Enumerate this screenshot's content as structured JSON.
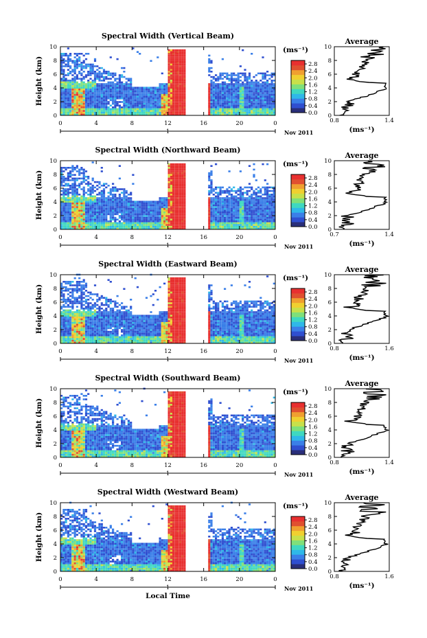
{
  "chart_data": [
    {
      "type": "heatmap",
      "title": "Spectral Width (Vertical Beam)",
      "ylabel": "Height (km)",
      "xlabel": "",
      "x_ticks": [
        "0",
        "4",
        "8",
        "12",
        "16",
        "20",
        "0"
      ],
      "y_ticks": [
        "0",
        "2",
        "4",
        "6",
        "8",
        "10"
      ],
      "xlim": [
        0,
        24
      ],
      "ylim": [
        0,
        10
      ],
      "date_label": "Nov 2011",
      "day_marker": "1",
      "colorbar": {
        "unit": "(ms⁻¹)",
        "ticks": [
          "0.0",
          "0.4",
          "0.8",
          "1.2",
          "1.6",
          "2.0",
          "2.4",
          "2.8"
        ],
        "range": [
          0,
          3
        ]
      },
      "average_profile": {
        "title": "Average",
        "xlabel": "(ms⁻¹)",
        "x_ticks": [
          "0.8",
          "1.4"
        ],
        "xlim": [
          0.8,
          1.4
        ],
        "y_ticks": [
          "0",
          "2",
          "4",
          "6",
          "8",
          "10"
        ]
      },
      "gap": [
        13.9,
        16.3
      ]
    },
    {
      "type": "heatmap",
      "title": "Spectral Width (Northward Beam)",
      "ylabel": "Height (km)",
      "xlabel": "",
      "x_ticks": [
        "0",
        "4",
        "8",
        "12",
        "16",
        "20",
        "0"
      ],
      "y_ticks": [
        "0",
        "2",
        "4",
        "6",
        "8",
        "10"
      ],
      "xlim": [
        0,
        24
      ],
      "ylim": [
        0,
        10
      ],
      "date_label": "Nov 2011",
      "day_marker": "1",
      "colorbar": {
        "unit": "(ms⁻¹)",
        "ticks": [
          "0.0",
          "0.4",
          "0.8",
          "1.2",
          "1.6",
          "2.0",
          "2.4",
          "2.8"
        ],
        "range": [
          0,
          3
        ]
      },
      "average_profile": {
        "title": "Average",
        "xlabel": "(ms⁻¹)",
        "x_ticks": [
          "0.7",
          "1.4"
        ],
        "xlim": [
          0.7,
          1.4
        ],
        "y_ticks": [
          "0",
          "2",
          "4",
          "6",
          "8",
          "10"
        ]
      },
      "gap": [
        13.9,
        16.3
      ]
    },
    {
      "type": "heatmap",
      "title": "Spectral Width (Eastward Beam)",
      "ylabel": "Height (km)",
      "xlabel": "",
      "x_ticks": [
        "0",
        "4",
        "8",
        "12",
        "16",
        "20",
        "0"
      ],
      "y_ticks": [
        "0",
        "2",
        "4",
        "6",
        "8",
        "10"
      ],
      "xlim": [
        0,
        24
      ],
      "ylim": [
        0,
        10
      ],
      "date_label": "Nov 2011",
      "day_marker": "1",
      "colorbar": {
        "unit": "(ms⁻¹)",
        "ticks": [
          "0.0",
          "0.4",
          "0.8",
          "1.2",
          "1.6",
          "2.0",
          "2.4",
          "2.8"
        ],
        "range": [
          0,
          3
        ]
      },
      "average_profile": {
        "title": "Average",
        "xlabel": "(ms⁻¹)",
        "x_ticks": [
          "0.8",
          "1.6"
        ],
        "xlim": [
          0.8,
          1.6
        ],
        "y_ticks": [
          "0",
          "2",
          "4",
          "6",
          "8",
          "10"
        ]
      },
      "gap": [
        13.9,
        16.3
      ]
    },
    {
      "type": "heatmap",
      "title": "Spectral Width (Southward Beam)",
      "ylabel": "Height (km)",
      "xlabel": "",
      "x_ticks": [
        "0",
        "4",
        "8",
        "12",
        "16",
        "20",
        "0"
      ],
      "y_ticks": [
        "0",
        "2",
        "4",
        "6",
        "8",
        "10"
      ],
      "xlim": [
        0,
        24
      ],
      "ylim": [
        0,
        10
      ],
      "date_label": "Nov 2011",
      "day_marker": "1",
      "colorbar": {
        "unit": "(ms⁻¹)",
        "ticks": [
          "0.0",
          "0.4",
          "0.8",
          "1.2",
          "1.6",
          "2.0",
          "2.4",
          "2.8"
        ],
        "range": [
          0,
          3
        ]
      },
      "average_profile": {
        "title": "Average",
        "xlabel": "(ms⁻¹)",
        "x_ticks": [
          "0.8",
          "1.4"
        ],
        "xlim": [
          0.8,
          1.4
        ],
        "y_ticks": [
          "0",
          "2",
          "4",
          "6",
          "8",
          "10"
        ]
      },
      "gap": [
        13.9,
        16.3
      ]
    },
    {
      "type": "heatmap",
      "title": "Spectral Width (Westward Beam)",
      "ylabel": "Height (km)",
      "xlabel": "Local Time",
      "x_ticks": [
        "0",
        "4",
        "8",
        "12",
        "16",
        "20",
        "0"
      ],
      "y_ticks": [
        "0",
        "2",
        "4",
        "6",
        "8",
        "10"
      ],
      "xlim": [
        0,
        24
      ],
      "ylim": [
        0,
        10
      ],
      "date_label": "Nov 2011",
      "day_marker": "1",
      "colorbar": {
        "unit": "(ms⁻¹)",
        "ticks": [
          "0.0",
          "0.4",
          "0.8",
          "1.2",
          "1.6",
          "2.0",
          "2.4",
          "2.8"
        ],
        "range": [
          0,
          3
        ]
      },
      "average_profile": {
        "title": "Average",
        "xlabel": "(ms⁻¹)",
        "x_ticks": [
          "0.8",
          "1.6"
        ],
        "xlim": [
          0.8,
          1.6
        ],
        "y_ticks": [
          "0",
          "2",
          "4",
          "6",
          "8",
          "10"
        ]
      },
      "gap": [
        13.9,
        16.3
      ]
    }
  ],
  "colors": {
    "palette": [
      "#2a2f7a",
      "#2f4fd0",
      "#3a7fe8",
      "#2fb8e8",
      "#3fd8c0",
      "#7fe07a",
      "#c8e04a",
      "#f0d030",
      "#f0a030",
      "#e05030",
      "#e83030"
    ]
  }
}
